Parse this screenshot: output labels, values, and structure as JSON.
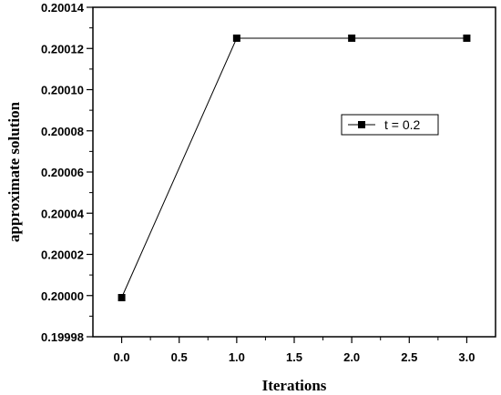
{
  "chart_data": {
    "type": "line",
    "xlabel": "Iterations",
    "ylabel": "approximate solution",
    "xlim": [
      -0.25,
      3.25
    ],
    "ylim": [
      0.19998,
      0.20014
    ],
    "x_ticks": [
      "0.0",
      "0.5",
      "1.0",
      "1.5",
      "2.0",
      "2.5",
      "3.0"
    ],
    "x_tick_values": [
      0,
      0.5,
      1,
      1.5,
      2,
      2.5,
      3
    ],
    "y_ticks": [
      "0.19998",
      "0.20000",
      "0.20002",
      "0.20004",
      "0.20006",
      "0.20008",
      "0.20010",
      "0.20012",
      "0.20014"
    ],
    "y_tick_values": [
      0.19998,
      0.2,
      0.20002,
      0.20004,
      0.20006,
      0.20008,
      0.2001,
      0.20012,
      0.20014
    ],
    "grid": false,
    "legend_position": "right",
    "series": [
      {
        "name": "t = 0.2",
        "x": [
          0,
          1,
          2,
          3
        ],
        "y": [
          0.199999,
          0.200125,
          0.200125,
          0.200125
        ],
        "marker": "square",
        "color": "#000000"
      }
    ]
  }
}
